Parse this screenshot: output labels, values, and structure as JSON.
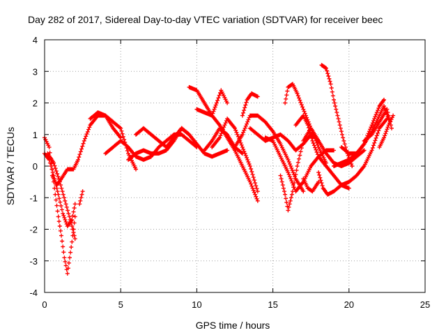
{
  "chart_data": {
    "type": "scatter",
    "title": "Day 282 of 2017, Sidereal Day-to-day VTEC variation (SDTVAR) for receiver beec",
    "xlabel": "GPS time / hours",
    "ylabel": "SDTVAR / TECUs",
    "xlim": [
      0,
      25
    ],
    "ylim": [
      -4,
      4
    ],
    "xticks": [
      0,
      5,
      10,
      15,
      20,
      25
    ],
    "yticks": [
      -4,
      -3,
      -2,
      -1,
      0,
      1,
      2,
      3,
      4
    ],
    "grid": true,
    "marker": "plus",
    "color": "#ff0000",
    "series": [
      {
        "x": [
          0.0,
          0.3,
          0.5,
          0.7,
          0.9,
          1.1,
          1.3,
          1.5,
          1.8,
          2.0
        ],
        "y": [
          0.9,
          0.6,
          -0.1,
          -0.9,
          -1.6,
          -2.2,
          -2.9,
          -3.4,
          -2.4,
          -1.6
        ]
      },
      {
        "x": [
          0.0,
          0.3,
          0.6,
          0.9,
          1.2,
          1.5,
          1.8,
          2.0
        ],
        "y": [
          0.4,
          0.2,
          -0.3,
          -0.9,
          -1.5,
          -1.9,
          -1.7,
          -1.2
        ]
      },
      {
        "x": [
          0.2,
          0.6,
          1.0,
          1.4,
          1.8,
          2.0
        ],
        "y": [
          0.4,
          0.1,
          -0.5,
          -1.2,
          -1.9,
          -2.3
        ]
      },
      {
        "x": [
          0.5,
          0.8,
          1.1,
          1.5,
          1.9,
          2.2,
          2.6,
          3.0,
          3.5,
          4.0,
          4.5,
          5.0,
          5.5,
          6.0
        ],
        "y": [
          -0.3,
          -0.6,
          -0.4,
          -0.1,
          -0.1,
          0.2,
          0.8,
          1.3,
          1.6,
          1.6,
          1.4,
          1.2,
          0.4,
          -0.1
        ]
      },
      {
        "x": [
          2.3,
          2.5
        ],
        "y": [
          -1.2,
          -0.8
        ]
      },
      {
        "x": [
          3.0,
          3.5,
          4.0,
          4.5,
          5.0
        ],
        "y": [
          1.5,
          1.7,
          1.6,
          1.2,
          0.9
        ]
      },
      {
        "x": [
          4.0,
          4.5,
          5.0,
          5.5,
          6.0,
          6.5,
          7.0,
          7.5,
          8.0,
          8.5,
          9.0,
          9.5,
          10.0
        ],
        "y": [
          0.4,
          0.6,
          0.8,
          0.6,
          0.3,
          0.2,
          0.3,
          0.6,
          0.8,
          1.0,
          1.0,
          0.8,
          0.6
        ]
      },
      {
        "x": [
          5.5,
          6.0,
          6.5,
          7.0,
          7.5,
          8.0,
          8.5,
          9.0,
          9.5,
          10.0,
          10.5,
          11.0,
          11.5,
          12.0
        ],
        "y": [
          0.2,
          0.4,
          0.5,
          0.4,
          0.4,
          0.5,
          0.8,
          1.2,
          1.0,
          0.7,
          0.4,
          0.3,
          0.4,
          0.5
        ]
      },
      {
        "x": [
          6.0,
          6.5,
          7.0,
          7.5,
          8.0,
          8.5,
          9.0,
          9.5
        ],
        "y": [
          1.0,
          1.2,
          1.0,
          0.8,
          0.6,
          0.9,
          1.2,
          1.0
        ]
      },
      {
        "x": [
          9.5,
          10.0,
          10.5,
          11.0,
          11.5,
          12.0,
          12.5,
          13.0,
          13.5,
          14.0
        ],
        "y": [
          2.5,
          2.4,
          2.0,
          1.6,
          1.3,
          0.9,
          0.5,
          0.0,
          -0.5,
          -1.1
        ]
      },
      {
        "x": [
          10.0,
          10.5,
          11.0,
          11.3,
          11.6,
          12.0
        ],
        "y": [
          1.8,
          1.7,
          1.6,
          2.0,
          2.4,
          2.0
        ]
      },
      {
        "x": [
          10.5,
          11.0,
          11.5,
          12.0,
          12.5,
          13.0
        ],
        "y": [
          0.5,
          0.8,
          1.2,
          1.0,
          0.6,
          0.4
        ]
      },
      {
        "x": [
          11.0,
          11.5,
          12.0,
          12.5,
          13.0,
          13.5,
          14.0
        ],
        "y": [
          0.6,
          0.9,
          1.5,
          1.2,
          0.6,
          0.0,
          -0.8
        ]
      },
      {
        "x": [
          12.5,
          13.0,
          13.5,
          14.0,
          14.5,
          15.0,
          15.5,
          16.0,
          16.5,
          17.0
        ],
        "y": [
          0.6,
          1.0,
          1.6,
          1.6,
          1.4,
          1.1,
          0.7,
          0.2,
          -0.4,
          -0.8
        ]
      },
      {
        "x": [
          13.0,
          13.3,
          13.6,
          14.0
        ],
        "y": [
          1.6,
          2.1,
          2.3,
          2.2
        ]
      },
      {
        "x": [
          13.5,
          14.0,
          14.5,
          15.0,
          15.5,
          16.0,
          16.5,
          17.0,
          17.5,
          18.0
        ],
        "y": [
          1.2,
          1.0,
          0.8,
          0.9,
          1.0,
          0.8,
          0.5,
          0.7,
          1.0,
          0.8
        ]
      },
      {
        "x": [
          14.5,
          15.0,
          15.5,
          16.0,
          16.5,
          17.0,
          17.5,
          18.0,
          18.5,
          19.0
        ],
        "y": [
          0.9,
          0.8,
          0.3,
          -0.2,
          -0.8,
          -0.5,
          0.0,
          0.3,
          0.5,
          0.5
        ]
      },
      {
        "x": [
          15.5,
          15.8,
          16.0,
          16.3,
          16.6,
          17.0,
          17.5,
          18.0,
          18.5,
          19.0,
          19.5,
          20.0,
          20.5,
          21.0
        ],
        "y": [
          -0.3,
          -0.9,
          -1.4,
          -0.8,
          0.0,
          0.8,
          1.2,
          0.8,
          0.4,
          0.1,
          0.0,
          0.1,
          0.3,
          0.5
        ]
      },
      {
        "x": [
          15.8,
          16.0,
          16.3,
          16.6,
          17.0,
          17.5,
          18.0,
          18.5
        ],
        "y": [
          2.0,
          2.5,
          2.6,
          2.3,
          1.8,
          1.2,
          0.6,
          0.1
        ]
      },
      {
        "x": [
          16.5,
          17.0,
          17.3,
          17.6,
          18.0,
          18.5,
          19.0,
          19.5,
          20.0
        ],
        "y": [
          1.3,
          1.6,
          1.3,
          0.8,
          0.3,
          0.0,
          -0.3,
          -0.6,
          -0.7
        ]
      },
      {
        "x": [
          17.0,
          17.3,
          17.6,
          18.0
        ],
        "y": [
          -0.4,
          -0.7,
          -0.8,
          -0.5
        ]
      },
      {
        "x": [
          18.0,
          18.3,
          18.6,
          19.0,
          19.5,
          20.0,
          20.5,
          21.0,
          21.5,
          22.0,
          22.5
        ],
        "y": [
          -0.2,
          -0.7,
          -0.9,
          -0.8,
          -0.6,
          -0.5,
          -0.3,
          0.0,
          0.5,
          1.2,
          1.5
        ]
      },
      {
        "x": [
          18.2,
          18.5,
          18.8,
          19.0,
          19.3,
          19.6,
          19.9,
          20.2
        ],
        "y": [
          3.2,
          3.1,
          2.6,
          2.1,
          1.5,
          0.9,
          0.4,
          0.0
        ]
      },
      {
        "x": [
          19.0,
          19.5,
          20.0,
          20.5,
          21.0,
          21.5,
          22.0,
          22.3,
          22.6
        ],
        "y": [
          0.0,
          0.1,
          0.2,
          0.4,
          0.7,
          1.1,
          1.6,
          1.9,
          1.5
        ]
      },
      {
        "x": [
          19.5,
          20.0,
          20.5,
          21.0,
          21.5,
          22.0,
          22.3
        ],
        "y": [
          0.6,
          0.4,
          0.4,
          0.7,
          1.3,
          1.9,
          2.1
        ]
      },
      {
        "x": [
          21.0,
          21.5,
          22.0,
          22.5,
          22.8
        ],
        "y": [
          0.8,
          1.0,
          1.4,
          1.8,
          1.2
        ]
      },
      {
        "x": [
          22.0,
          22.3,
          22.6,
          22.9
        ],
        "y": [
          0.6,
          0.9,
          1.3,
          1.6
        ]
      }
    ]
  }
}
